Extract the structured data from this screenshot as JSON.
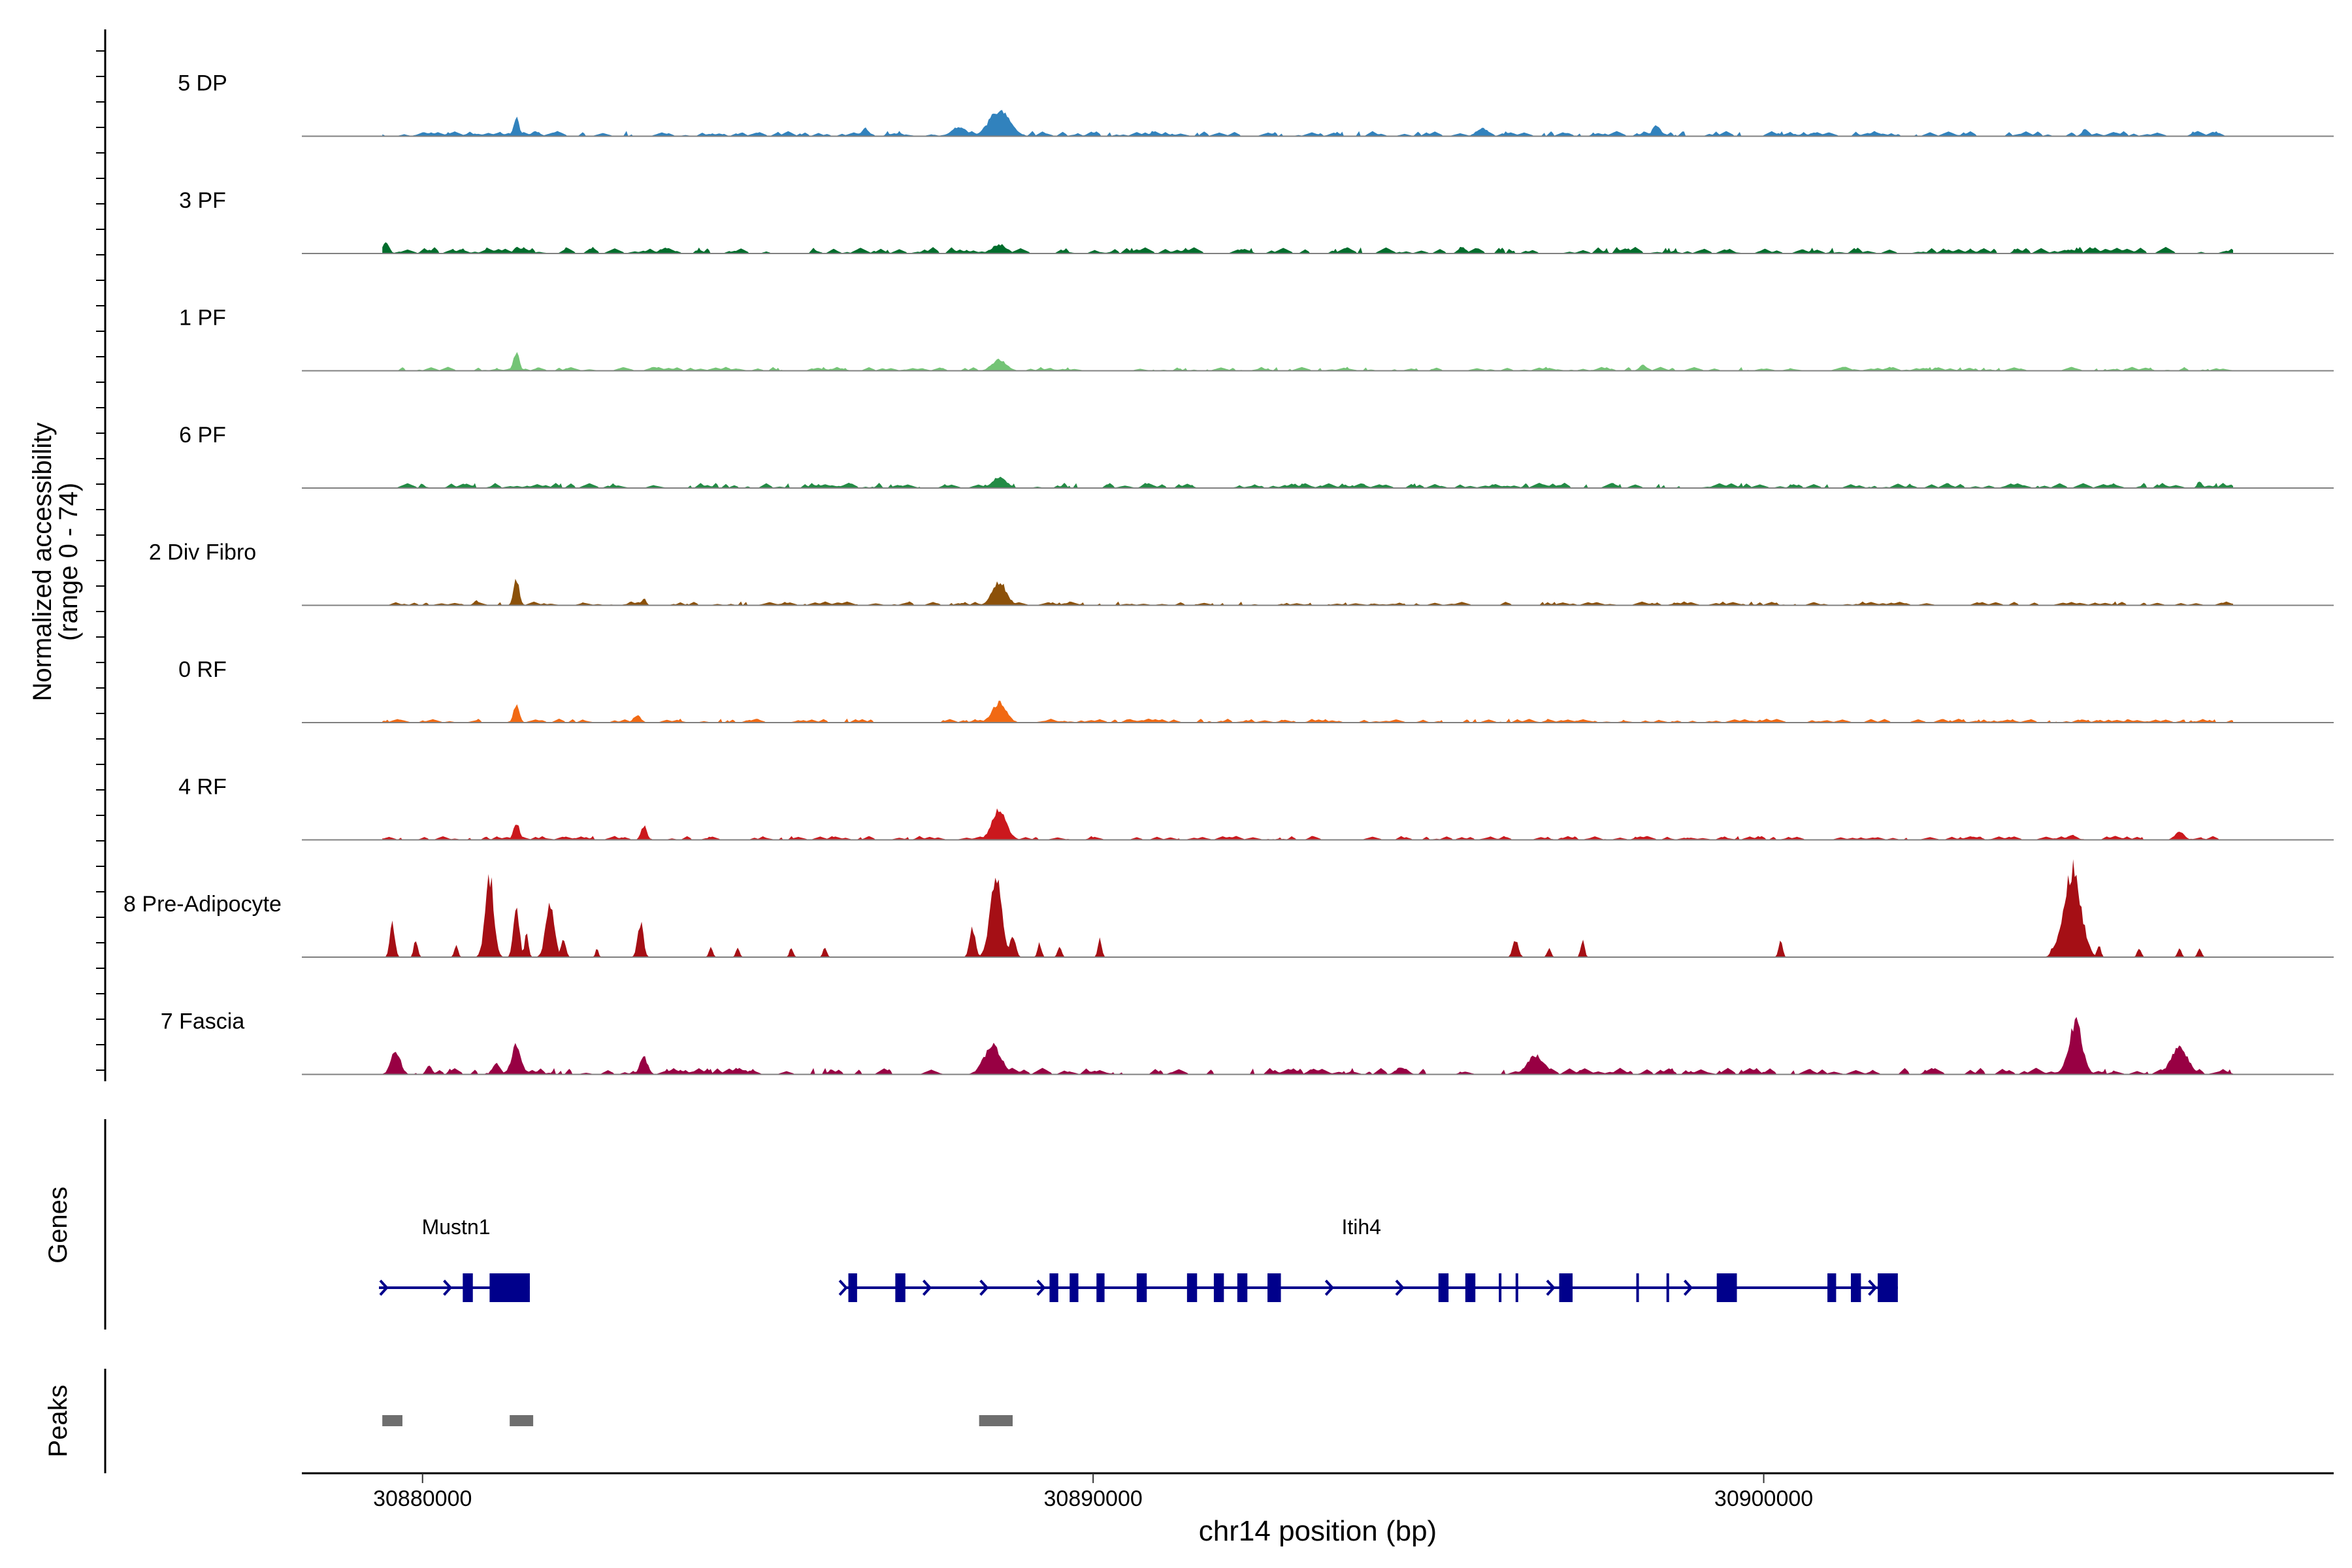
{
  "chart_data": {
    "type": "area",
    "title": "",
    "xlabel": "chr14 position (bp)",
    "ylabel_line1": "Normalized accessibility",
    "ylabel_line2": "(range 0 - 74)",
    "xlim": [
      30878200,
      30908500
    ],
    "ylim": [
      0,
      74
    ],
    "region_start": 30879400,
    "region_end": 30907000,
    "x_ticks": [
      30880000,
      30890000,
      30900000
    ],
    "x_tick_labels": [
      "30880000",
      "30890000",
      "30900000"
    ],
    "baseline_color": "#808080",
    "tracks": [
      {
        "name": "5 DP",
        "color": "#3182BD",
        "noise": 4,
        "density": 0.6,
        "seed": 11,
        "peaks": [
          [
            30881400,
            16,
            60
          ],
          [
            30886600,
            7,
            70
          ],
          [
            30888000,
            8,
            150
          ],
          [
            30888600,
            22,
            220
          ],
          [
            30898400,
            10,
            80
          ],
          [
            30895800,
            7,
            120
          ],
          [
            30904800,
            6,
            80
          ]
        ]
      },
      {
        "name": "3 PF",
        "color": "#006D2C",
        "noise": 5,
        "density": 0.6,
        "seed": 23,
        "peaks": [
          [
            30879450,
            10,
            70
          ],
          [
            30881400,
            6,
            60
          ],
          [
            30888600,
            8,
            150
          ],
          [
            30895500,
            6,
            80
          ]
        ]
      },
      {
        "name": "1 PF",
        "color": "#74C476",
        "noise": 3,
        "density": 0.6,
        "seed": 37,
        "peaks": [
          [
            30881400,
            16,
            60
          ],
          [
            30888600,
            10,
            150
          ],
          [
            30898200,
            5,
            80
          ]
        ]
      },
      {
        "name": "6 PF",
        "color": "#238B45",
        "noise": 4,
        "density": 0.6,
        "seed": 41,
        "peaks": [
          [
            30888600,
            9,
            150
          ],
          [
            30906500,
            6,
            50
          ]
        ]
      },
      {
        "name": "2 Div Fibro",
        "color": "#8C510A",
        "noise": 3,
        "density": 0.55,
        "seed": 53,
        "peaks": [
          [
            30881400,
            22,
            60
          ],
          [
            30888600,
            20,
            150
          ],
          [
            30880800,
            4,
            60
          ],
          [
            30883300,
            6,
            50
          ]
        ]
      },
      {
        "name": "0 RF",
        "color": "#F16913",
        "noise": 3,
        "density": 0.6,
        "seed": 61,
        "peaks": [
          [
            30881400,
            16,
            60
          ],
          [
            30883200,
            6,
            80
          ],
          [
            30888600,
            17,
            150
          ]
        ]
      },
      {
        "name": "4 RF",
        "color": "#CB181D",
        "noise": 3,
        "density": 0.6,
        "seed": 71,
        "peaks": [
          [
            30881400,
            15,
            60
          ],
          [
            30883300,
            12,
            60
          ],
          [
            30888600,
            27,
            150
          ],
          [
            30904600,
            4,
            100
          ],
          [
            30906200,
            7,
            100
          ]
        ]
      },
      {
        "name": "8 Pre-Adipocyte",
        "color": "#A50F15",
        "noise": 0,
        "density": 0.0,
        "seed": 83,
        "peaks": [
          [
            30879550,
            30,
            50
          ],
          [
            30879900,
            15,
            40
          ],
          [
            30880500,
            10,
            40
          ],
          [
            30881000,
            70,
            90
          ],
          [
            30881400,
            45,
            60
          ],
          [
            30881550,
            20,
            40
          ],
          [
            30881900,
            45,
            90
          ],
          [
            30882100,
            15,
            50
          ],
          [
            30882600,
            8,
            30
          ],
          [
            30883250,
            30,
            60
          ],
          [
            30884300,
            8,
            40
          ],
          [
            30884700,
            8,
            40
          ],
          [
            30885500,
            8,
            40
          ],
          [
            30886000,
            8,
            40
          ],
          [
            30888200,
            25,
            60
          ],
          [
            30888550,
            72,
            120
          ],
          [
            30888800,
            20,
            60
          ],
          [
            30889200,
            12,
            40
          ],
          [
            30889500,
            10,
            40
          ],
          [
            30890100,
            16,
            40
          ],
          [
            30896300,
            15,
            60
          ],
          [
            30896800,
            8,
            40
          ],
          [
            30897300,
            15,
            40
          ],
          [
            30900250,
            16,
            40
          ],
          [
            30904300,
            8,
            40
          ],
          [
            30904600,
            75,
            180
          ],
          [
            30905000,
            10,
            40
          ],
          [
            30905600,
            8,
            40
          ],
          [
            30906200,
            8,
            40
          ],
          [
            30906500,
            8,
            40
          ]
        ]
      },
      {
        "name": "7 Fascia",
        "color": "#980043",
        "noise": 5,
        "density": 0.55,
        "seed": 97,
        "peaks": [
          [
            30879600,
            20,
            100
          ],
          [
            30880100,
            8,
            60
          ],
          [
            30881400,
            25,
            100
          ],
          [
            30881100,
            10,
            80
          ],
          [
            30883300,
            15,
            80
          ],
          [
            30888500,
            25,
            180
          ],
          [
            30894600,
            6,
            120
          ],
          [
            30896600,
            16,
            180
          ],
          [
            30904650,
            44,
            140
          ],
          [
            30906200,
            22,
            180
          ]
        ]
      }
    ],
    "genes": [
      {
        "name": "Mustn1",
        "label_x": 30880500,
        "start": 30879350,
        "end": 30881600,
        "strand": "+",
        "exons": [
          [
            30880600,
            30880750
          ],
          [
            30881000,
            30881600
          ]
        ],
        "arrows": [
          30879350,
          30880300
        ]
      },
      {
        "name": "Itih4",
        "label_x": 30894000,
        "start": 30886300,
        "end": 30902000,
        "strand": "+",
        "exons": [
          [
            30886350,
            30886480
          ],
          [
            30887050,
            30887200
          ],
          [
            30889350,
            30889480
          ],
          [
            30889650,
            30889780
          ],
          [
            30890050,
            30890170
          ],
          [
            30890650,
            30890800
          ],
          [
            30891400,
            30891550
          ],
          [
            30891800,
            30891950
          ],
          [
            30892150,
            30892300
          ],
          [
            30892600,
            30892800
          ],
          [
            30895150,
            30895300
          ],
          [
            30895550,
            30895700
          ],
          [
            30896050,
            30896080
          ],
          [
            30896300,
            30896330
          ],
          [
            30896950,
            30897150
          ],
          [
            30898100,
            30898130
          ],
          [
            30898550,
            30898580
          ],
          [
            30899300,
            30899600
          ],
          [
            30900950,
            30901080
          ],
          [
            30901300,
            30901450
          ],
          [
            30901700,
            30902000
          ]
        ],
        "arrows": [
          30886200,
          30887450,
          30888300,
          30889150,
          30893450,
          30894500,
          30896750,
          30898800,
          30901550
        ]
      }
    ],
    "peaks_track": [
      [
        30879400,
        30879700
      ],
      [
        30881300,
        30881650
      ],
      [
        30888300,
        30888800
      ]
    ],
    "panel_labels": {
      "genes": "Genes",
      "peaks": "Peaks"
    },
    "gene_color": "#00008B",
    "peak_color": "#6E6E6E"
  }
}
